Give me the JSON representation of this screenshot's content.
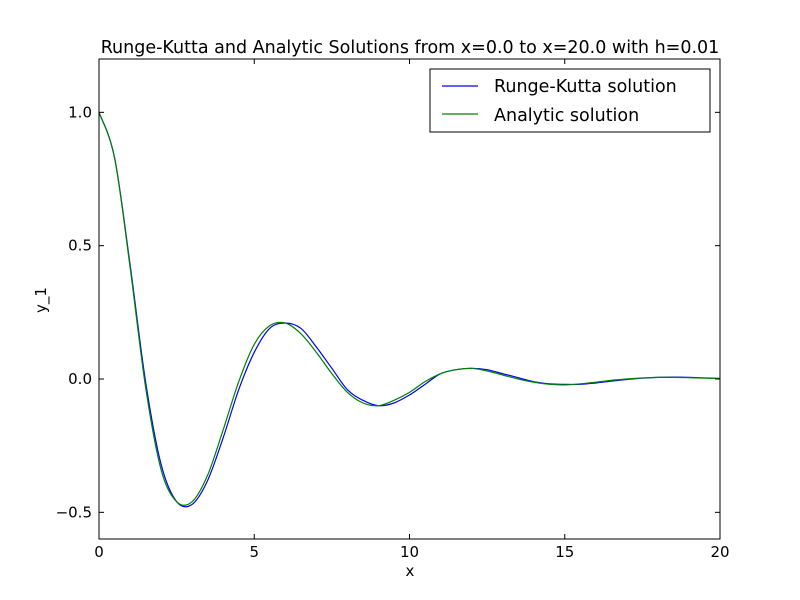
{
  "chart_data": {
    "type": "line",
    "title": "Runge-Kutta and Analytic Solutions from x=0.0 to x=20.0 with h=0.01",
    "xlabel": "x",
    "ylabel": "y_1",
    "xlim": [
      0,
      20
    ],
    "ylim": [
      -0.6,
      1.2
    ],
    "xticks": [
      0,
      5,
      10,
      15,
      20
    ],
    "xtick_labels": [
      "0",
      "5",
      "10",
      "15",
      "20"
    ],
    "yticks": [
      -0.5,
      0.0,
      0.5,
      1.0
    ],
    "ytick_labels": [
      "−0.5",
      "0.0",
      "0.5",
      "1.0"
    ],
    "grid": false,
    "legend_position": "top-right",
    "series": [
      {
        "name": "Runge-Kutta solution",
        "color": "#0000ff",
        "x": [
          0,
          0.5,
          1,
          1.5,
          2,
          2.5,
          3,
          3.5,
          4,
          4.5,
          5,
          5.5,
          6,
          6.5,
          7,
          7.5,
          8,
          8.5,
          9,
          9.5,
          10,
          10.5,
          11,
          11.5,
          12,
          12.5,
          13,
          13.5,
          14,
          14.5,
          15,
          15.5,
          16,
          16.5,
          17,
          17.5,
          18,
          18.5,
          19,
          19.5,
          20
        ],
        "y": [
          1.0,
          0.83,
          0.43,
          -0.01,
          -0.32,
          -0.46,
          -0.47,
          -0.38,
          -0.22,
          -0.04,
          0.1,
          0.19,
          0.21,
          0.19,
          0.12,
          0.04,
          -0.04,
          -0.08,
          -0.1,
          -0.09,
          -0.06,
          -0.02,
          0.02,
          0.035,
          0.04,
          0.035,
          0.02,
          0.005,
          -0.01,
          -0.018,
          -0.02,
          -0.02,
          -0.015,
          -0.008,
          -0.002,
          0.003,
          0.006,
          0.007,
          0.006,
          0.004,
          0.002
        ]
      },
      {
        "name": "Analytic solution",
        "color": "#008000",
        "x": [
          0,
          0.5,
          1,
          1.5,
          2,
          2.5,
          3,
          3.5,
          4,
          4.5,
          5,
          5.5,
          6,
          6.5,
          7,
          7.5,
          8,
          8.5,
          9,
          9.5,
          10,
          10.5,
          11,
          11.5,
          12,
          12.5,
          13,
          13.5,
          14,
          14.5,
          15,
          15.5,
          16,
          16.5,
          17,
          17.5,
          18,
          18.5,
          19,
          19.5,
          20
        ],
        "y": [
          1.0,
          0.83,
          0.42,
          -0.03,
          -0.34,
          -0.46,
          -0.46,
          -0.36,
          -0.19,
          -0.01,
          0.13,
          0.2,
          0.21,
          0.17,
          0.1,
          0.02,
          -0.05,
          -0.09,
          -0.1,
          -0.08,
          -0.05,
          -0.01,
          0.02,
          0.035,
          0.04,
          0.03,
          0.015,
          0.0,
          -0.012,
          -0.02,
          -0.022,
          -0.018,
          -0.012,
          -0.005,
          0.0,
          0.004,
          0.006,
          0.006,
          0.005,
          0.003,
          0.002
        ]
      }
    ]
  }
}
